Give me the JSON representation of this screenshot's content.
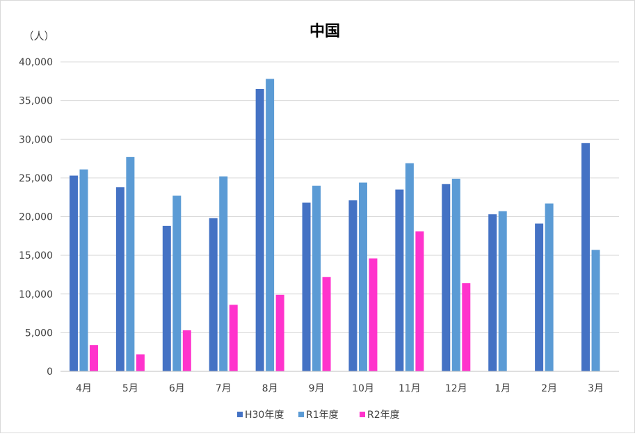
{
  "chart_data": {
    "type": "bar",
    "title": "中国",
    "y_unit_label": "（人）",
    "ylim": [
      0,
      40000
    ],
    "y_ticks": [
      "0",
      "5,000",
      "10,000",
      "15,000",
      "20,000",
      "25,000",
      "30,000",
      "35,000",
      "40,000"
    ],
    "y_tick_values": [
      0,
      5000,
      10000,
      15000,
      20000,
      25000,
      30000,
      35000,
      40000
    ],
    "grid": true,
    "legend_position": "bottom",
    "categories": [
      "4月",
      "5月",
      "6月",
      "7月",
      "8月",
      "9月",
      "10月",
      "11月",
      "12月",
      "1月",
      "2月",
      "3月"
    ],
    "series": [
      {
        "name": "H30年度",
        "color": "#4472C4",
        "values": [
          25300,
          23800,
          18800,
          19800,
          36500,
          21800,
          22100,
          23500,
          24200,
          20300,
          19100,
          29500
        ]
      },
      {
        "name": "R1年度",
        "color": "#5B9BD5",
        "values": [
          26100,
          27700,
          22700,
          25200,
          37800,
          24000,
          24400,
          26900,
          24900,
          20700,
          21700,
          15700
        ]
      },
      {
        "name": "R2年度",
        "color": "#FF33CC",
        "values": [
          3400,
          2200,
          5300,
          8600,
          9900,
          12200,
          14600,
          18100,
          11400,
          null,
          null,
          null
        ]
      }
    ]
  }
}
